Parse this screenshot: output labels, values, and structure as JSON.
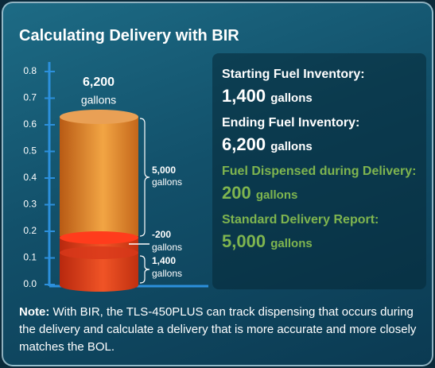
{
  "title": "Calculating Delivery with BIR",
  "tank": {
    "axis_ticks": [
      {
        "value": 0,
        "label": "0.0"
      },
      {
        "value": 0.1,
        "label": "0.1"
      },
      {
        "value": 0.2,
        "label": "0.2"
      },
      {
        "value": 0.3,
        "label": "0.3"
      },
      {
        "value": 0.4,
        "label": "0.4"
      },
      {
        "value": 0.5,
        "label": "0.5"
      },
      {
        "value": 0.6,
        "label": "0.6"
      },
      {
        "value": 0.7,
        "label": "0.7"
      },
      {
        "value": 0.8,
        "label": "0.8"
      }
    ],
    "top_label": {
      "value": "6,200",
      "unit": "gallons"
    },
    "brace_labels": [
      {
        "value": "5,000",
        "unit": "gallons"
      },
      {
        "value": "-200",
        "unit": "gallons"
      },
      {
        "value": "1,400",
        "unit": "gallons"
      }
    ]
  },
  "panel": [
    {
      "label": "Starting Fuel Inventory:",
      "value": "1,400",
      "unit": "gallons"
    },
    {
      "label": "Ending Fuel Inventory:",
      "value": "6,200",
      "unit": "gallons"
    },
    {
      "label": "Fuel Dispensed during Delivery:",
      "value": "200",
      "unit": "gallons"
    },
    {
      "label": "Standard Delivery Report:",
      "value": "5,000",
      "unit": "gallons"
    }
  ],
  "note": {
    "label": "Note:",
    "text": "With BIR, the TLS-450PLUS can track dispensing that occurs during the delivery and calculate a delivery that is more accurate and more closely matches the BOL."
  }
}
